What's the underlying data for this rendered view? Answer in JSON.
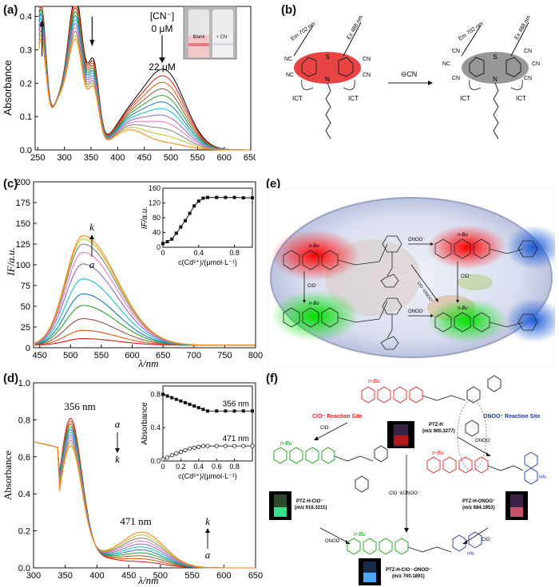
{
  "panels": {
    "a": {
      "label": "(a)"
    },
    "b": {
      "label": "(b)"
    },
    "c": {
      "label": "(c)"
    },
    "d": {
      "label": "(d)"
    },
    "e": {
      "label": "(e)"
    },
    "f": {
      "label": "(f)"
    }
  },
  "chart_data": [
    {
      "id": "a",
      "type": "line",
      "ylabel": "Absorbance",
      "xlim": [
        245,
        650
      ],
      "ylim": [
        0,
        0.43
      ],
      "x_ticks": [
        250,
        300,
        350,
        400,
        450,
        500,
        550,
        600,
        650
      ],
      "y_ticks": [
        0.0,
        0.1,
        0.2,
        0.3,
        0.4
      ],
      "annotations": {
        "conc_label": "[CN⁻]",
        "start": "0 μM",
        "end": "22 μM"
      },
      "inset": {
        "blank": "Blank",
        "cn": "+ CN⁻"
      },
      "series_count": 12,
      "peak_values": {
        "p256_start": 0.4,
        "p256_end": 0.3,
        "p320_start": 0.43,
        "p320_end": 0.3,
        "p490_start": 0.235,
        "p490_end": 0.02
      }
    },
    {
      "id": "c",
      "type": "line",
      "ylabel": "IF/a.u.",
      "xlabel": "λ/nm",
      "xlim": [
        440,
        800
      ],
      "ylim": [
        0,
        200
      ],
      "x_ticks": [
        450,
        500,
        550,
        600,
        650,
        700,
        750,
        800
      ],
      "y_ticks": [
        0,
        25,
        50,
        75,
        100,
        125,
        150,
        175,
        200
      ],
      "series_labels": {
        "first": "a",
        "last": "k"
      },
      "peak_values": [
        8,
        18,
        32,
        48,
        62,
        80,
        98,
        112,
        122,
        128,
        132
      ],
      "inset": {
        "ylabel": "IF/a.u.",
        "xlabel": "c(Cd²⁺)/(μmol·L⁻¹)",
        "x_ticks": [
          0,
          0.4,
          0.8
        ],
        "y_ticks": [
          0,
          40,
          80,
          120,
          160
        ],
        "x": [
          0,
          0.05,
          0.1,
          0.15,
          0.2,
          0.25,
          0.3,
          0.35,
          0.4,
          0.45,
          0.5,
          0.6,
          0.7,
          0.8,
          0.9,
          1.0
        ],
        "y": [
          10,
          15,
          22,
          38,
          55,
          72,
          92,
          112,
          125,
          133,
          135,
          135,
          135,
          135,
          134,
          134
        ]
      }
    },
    {
      "id": "d",
      "type": "line",
      "ylabel": "Absorbance",
      "xlabel": "λ/nm",
      "xlim": [
        300,
        650
      ],
      "ylim": [
        0,
        1.0
      ],
      "x_ticks": [
        300,
        350,
        400,
        450,
        500,
        550,
        600,
        650
      ],
      "y_ticks": [
        0.0,
        0.2,
        0.4,
        0.6,
        0.8,
        1.0
      ],
      "labels": {
        "peak1": "356 nm",
        "peak2": "471 nm",
        "a": "a",
        "k": "k"
      },
      "series_count": 11,
      "inset": {
        "ylabel": "Absorbance",
        "xlabel": "c(Cd²⁺)/(μmol·L⁻¹)",
        "x_ticks": [
          0,
          0.2,
          0.4,
          0.6,
          0.8
        ],
        "y_ticks": [
          0.0,
          0.4,
          0.8
        ],
        "series": [
          {
            "name": "356 nm",
            "x": [
              0,
              0.05,
              0.1,
              0.15,
              0.2,
              0.25,
              0.3,
              0.35,
              0.4,
              0.45,
              0.5,
              0.6,
              0.7,
              0.8,
              0.9,
              1.0
            ],
            "y": [
              0.8,
              0.78,
              0.76,
              0.74,
              0.72,
              0.7,
              0.68,
              0.66,
              0.64,
              0.62,
              0.6,
              0.6,
              0.6,
              0.6,
              0.6,
              0.6
            ]
          },
          {
            "name": "471 nm",
            "x": [
              0,
              0.05,
              0.1,
              0.15,
              0.2,
              0.25,
              0.3,
              0.35,
              0.4,
              0.45,
              0.5,
              0.6,
              0.7,
              0.8,
              0.9,
              1.0
            ],
            "y": [
              0.02,
              0.04,
              0.07,
              0.09,
              0.11,
              0.13,
              0.15,
              0.16,
              0.17,
              0.18,
              0.18,
              0.18,
              0.18,
              0.18,
              0.18,
              0.18
            ]
          }
        ]
      }
    }
  ],
  "scheme_b": {
    "em": "Em 702 nm",
    "ex": "Ex 488 nm",
    "ict": "ICT",
    "cn": "⊖CN",
    "cn_sym": "CN",
    "nc_sym": "NC",
    "s": "S",
    "n": "N"
  },
  "scheme_e": {
    "nbu": "n-Bu",
    "onoo": "ONOO⁻",
    "clo": "ClO⁻",
    "both": "ClO⁻/ONOO⁻"
  },
  "scheme_f": {
    "nbu": "n-Bu",
    "clo_site": "ClO⁻ Reaction Site",
    "onoo_site": "ONOO⁻ Reaction Site",
    "top_name": "PTZ-H",
    "top_mz": "(m/z 900.3277)",
    "left_name": "PTZ-H-ClO⁻",
    "left_mz": "(m/z 916.3211)",
    "right_name": "PTZ-H-ONOO⁻",
    "right_mz": "(m/z 684.1953)",
    "bottom_name": "PTZ-H-ClO⁻-ONOO⁻",
    "bottom_mz": "(m/z 700.1891)",
    "clo": "ClO⁻",
    "onoo": "ONOO⁻",
    "both": "ClO⁻&ONOO⁻",
    "nh": "HN"
  }
}
